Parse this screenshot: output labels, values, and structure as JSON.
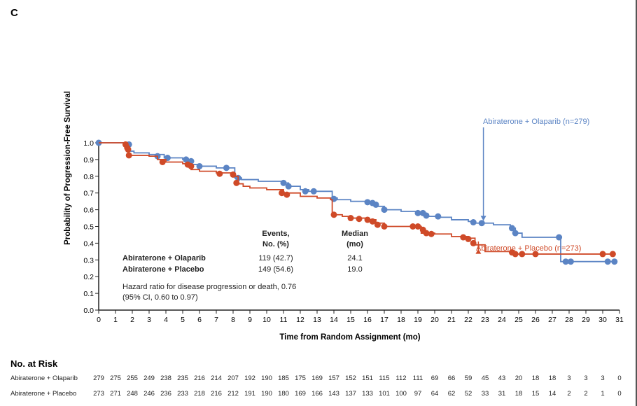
{
  "panel_label": "C",
  "colors": {
    "olaparib": "#5b84c4",
    "placebo": "#cf4a28",
    "axis": "#222222"
  },
  "chart_data": {
    "type": "line",
    "subtype": "kaplan-meier",
    "xlabel": "Time from Random Assignment (mo)",
    "ylabel": "Probability of Progression-Free Survival",
    "xlim": [
      0,
      31
    ],
    "ylim": [
      0,
      1.0
    ],
    "xticks": [
      0,
      1,
      2,
      3,
      4,
      5,
      6,
      7,
      8,
      9,
      10,
      11,
      12,
      13,
      14,
      15,
      16,
      17,
      18,
      19,
      20,
      21,
      22,
      23,
      24,
      25,
      26,
      27,
      28,
      29,
      30,
      31
    ],
    "yticks": [
      "0.0",
      "0.1",
      "0.2",
      "0.3",
      "0.4",
      "0.5",
      "0.6",
      "0.7",
      "0.8",
      "0.9",
      "1.0"
    ],
    "series": [
      {
        "name": "Abiraterone + Olaparib (n=279)",
        "key": "olaparib",
        "steps": [
          [
            0,
            1.0
          ],
          [
            1.7,
            0.99
          ],
          [
            1.8,
            0.95
          ],
          [
            2.1,
            0.94
          ],
          [
            3,
            0.93
          ],
          [
            3.9,
            0.91
          ],
          [
            5,
            0.9
          ],
          [
            5.5,
            0.87
          ],
          [
            6,
            0.86
          ],
          [
            7,
            0.85
          ],
          [
            8.1,
            0.79
          ],
          [
            8.5,
            0.78
          ],
          [
            9.5,
            0.77
          ],
          [
            11,
            0.76
          ],
          [
            11.3,
            0.74
          ],
          [
            12,
            0.72
          ],
          [
            12.5,
            0.71
          ],
          [
            13.9,
            0.67
          ],
          [
            14.2,
            0.66
          ],
          [
            15,
            0.65
          ],
          [
            16,
            0.64
          ],
          [
            16.6,
            0.62
          ],
          [
            17,
            0.6
          ],
          [
            18,
            0.59
          ],
          [
            19,
            0.58
          ],
          [
            19.5,
            0.56
          ],
          [
            20.2,
            0.555
          ],
          [
            21,
            0.54
          ],
          [
            22,
            0.53
          ],
          [
            22.3,
            0.52
          ],
          [
            23.5,
            0.51
          ],
          [
            24.5,
            0.49
          ],
          [
            24.8,
            0.46
          ],
          [
            25.2,
            0.435
          ],
          [
            27.5,
            0.29
          ],
          [
            30.8,
            0.29
          ]
        ],
        "censored": [
          [
            0,
            1.0
          ],
          [
            1.8,
            0.99
          ],
          [
            3.5,
            0.92
          ],
          [
            4.1,
            0.91
          ],
          [
            5.2,
            0.9
          ],
          [
            5.5,
            0.89
          ],
          [
            6,
            0.86
          ],
          [
            7.6,
            0.85
          ],
          [
            8.3,
            0.79
          ],
          [
            11,
            0.76
          ],
          [
            11.3,
            0.74
          ],
          [
            12.3,
            0.71
          ],
          [
            12.8,
            0.71
          ],
          [
            14,
            0.665
          ],
          [
            16,
            0.645
          ],
          [
            16.3,
            0.64
          ],
          [
            16.5,
            0.63
          ],
          [
            17,
            0.6
          ],
          [
            19,
            0.58
          ],
          [
            19.3,
            0.58
          ],
          [
            19.5,
            0.565
          ],
          [
            20.2,
            0.56
          ],
          [
            22.3,
            0.525
          ],
          [
            22.8,
            0.52
          ],
          [
            24.6,
            0.49
          ],
          [
            24.8,
            0.46
          ],
          [
            27.4,
            0.435
          ],
          [
            27.8,
            0.29
          ],
          [
            28.1,
            0.29
          ],
          [
            30.3,
            0.29
          ],
          [
            30.7,
            0.29
          ]
        ]
      },
      {
        "name": "Abiraterone + Placebo (n=273)",
        "key": "placebo",
        "steps": [
          [
            0,
            1.0
          ],
          [
            1.6,
            0.99
          ],
          [
            1.7,
            0.96
          ],
          [
            1.8,
            0.925
          ],
          [
            3,
            0.92
          ],
          [
            3.5,
            0.9
          ],
          [
            4,
            0.885
          ],
          [
            5,
            0.875
          ],
          [
            5.5,
            0.84
          ],
          [
            6,
            0.83
          ],
          [
            7,
            0.82
          ],
          [
            8.1,
            0.8
          ],
          [
            8.3,
            0.755
          ],
          [
            8.6,
            0.74
          ],
          [
            9,
            0.73
          ],
          [
            10,
            0.72
          ],
          [
            11,
            0.7
          ],
          [
            12,
            0.68
          ],
          [
            13,
            0.67
          ],
          [
            13.8,
            0.66
          ],
          [
            13.9,
            0.57
          ],
          [
            14.5,
            0.56
          ],
          [
            15,
            0.55
          ],
          [
            16,
            0.54
          ],
          [
            16.5,
            0.52
          ],
          [
            17,
            0.5
          ],
          [
            18.5,
            0.5
          ],
          [
            19.2,
            0.46
          ],
          [
            20,
            0.455
          ],
          [
            21,
            0.44
          ],
          [
            22,
            0.43
          ],
          [
            22.4,
            0.39
          ],
          [
            23,
            0.35
          ],
          [
            24.5,
            0.34
          ],
          [
            24.7,
            0.335
          ],
          [
            30.6,
            0.335
          ]
        ],
        "censored": [
          [
            1.6,
            0.99
          ],
          [
            1.7,
            0.97
          ],
          [
            1.75,
            0.96
          ],
          [
            1.8,
            0.925
          ],
          [
            3.8,
            0.885
          ],
          [
            5.3,
            0.87
          ],
          [
            5.5,
            0.86
          ],
          [
            7.2,
            0.815
          ],
          [
            8,
            0.81
          ],
          [
            8.2,
            0.76
          ],
          [
            10.9,
            0.7
          ],
          [
            11.2,
            0.69
          ],
          [
            14,
            0.57
          ],
          [
            15,
            0.55
          ],
          [
            15.5,
            0.545
          ],
          [
            16,
            0.54
          ],
          [
            16.3,
            0.53
          ],
          [
            16.6,
            0.51
          ],
          [
            17,
            0.5
          ],
          [
            18.7,
            0.5
          ],
          [
            19,
            0.5
          ],
          [
            19.3,
            0.48
          ],
          [
            19.5,
            0.46
          ],
          [
            19.8,
            0.455
          ],
          [
            21.7,
            0.435
          ],
          [
            22,
            0.425
          ],
          [
            22.3,
            0.4
          ],
          [
            24.6,
            0.345
          ],
          [
            24.8,
            0.335
          ],
          [
            25.2,
            0.335
          ],
          [
            26,
            0.335
          ],
          [
            30,
            0.335
          ],
          [
            30.6,
            0.335
          ]
        ]
      }
    ],
    "annotations": {
      "olaparib_label": "Abiraterone + Olaparib (n=279)",
      "placebo_label": "Abiraterone + Placebo (n=273)"
    }
  },
  "summary": {
    "col_events": [
      "Events,",
      "No. (%)"
    ],
    "col_median": [
      "Median",
      "(mo)"
    ],
    "rows": [
      {
        "name": "Abiraterone + Olaparib",
        "events": "119 (42.7)",
        "median": "24.1"
      },
      {
        "name": "Abiraterone + Placebo",
        "events": "149 (54.6)",
        "median": "19.0"
      }
    ],
    "hr_line1": "Hazard ratio for disease progression or death, 0.76",
    "hr_line2": "(95% CI, 0.60 to 0.97)"
  },
  "risk": {
    "title": "No. at Risk",
    "rows": [
      {
        "label": "Abiraterone + Olaparib",
        "values": [
          "279",
          "275",
          "255",
          "249",
          "238",
          "235",
          "216",
          "214",
          "207",
          "192",
          "190",
          "185",
          "175",
          "169",
          "157",
          "152",
          "151",
          "115",
          "112",
          "111",
          "69",
          "66",
          "59",
          "45",
          "43",
          "20",
          "18",
          "18",
          "3",
          "3",
          "3",
          "0"
        ]
      },
      {
        "label": "Abiraterone + Placebo",
        "values": [
          "273",
          "271",
          "248",
          "246",
          "236",
          "233",
          "218",
          "216",
          "212",
          "191",
          "190",
          "180",
          "169",
          "166",
          "143",
          "137",
          "133",
          "101",
          "100",
          "97",
          "64",
          "62",
          "52",
          "33",
          "31",
          "18",
          "15",
          "14",
          "2",
          "2",
          "1",
          "0"
        ]
      }
    ]
  }
}
